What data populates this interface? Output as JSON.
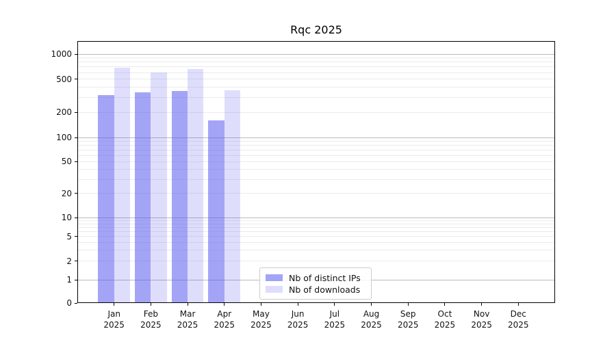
{
  "title": "Rqc 2025",
  "chart_data": {
    "type": "bar",
    "title": "Rqc 2025",
    "categories": [
      "Jan",
      "Feb",
      "Mar",
      "Apr",
      "May",
      "Jun",
      "Jul",
      "Aug",
      "Sep",
      "Oct",
      "Nov",
      "Dec"
    ],
    "x_year": "2025",
    "series": [
      {
        "name": "Nb of distinct IPs",
        "color": "rgba(90,90,240,0.55)",
        "values": [
          320,
          350,
          362,
          160,
          0,
          0,
          0,
          0,
          0,
          0,
          0,
          0
        ]
      },
      {
        "name": "Nb of downloads",
        "color": "rgba(90,90,240,0.20)",
        "values": [
          680,
          605,
          662,
          370,
          0,
          0,
          0,
          0,
          0,
          0,
          0,
          0
        ]
      }
    ],
    "y_ticks": [
      0,
      1,
      2,
      5,
      10,
      20,
      50,
      100,
      200,
      500,
      1000
    ],
    "y_scale": "symlog",
    "ylim": [
      0,
      1430
    ],
    "grid": true,
    "legend_position": "lower-center-inside"
  },
  "colors": {
    "bar_ip_solid": "#a4a4f7",
    "bar_dl_solid": "#dedefc",
    "major_grid": "#b9b9b9",
    "minor_grid": "#ebebeb",
    "spine": "#000000",
    "legend_border": "#cccccc",
    "text": "#111111"
  }
}
